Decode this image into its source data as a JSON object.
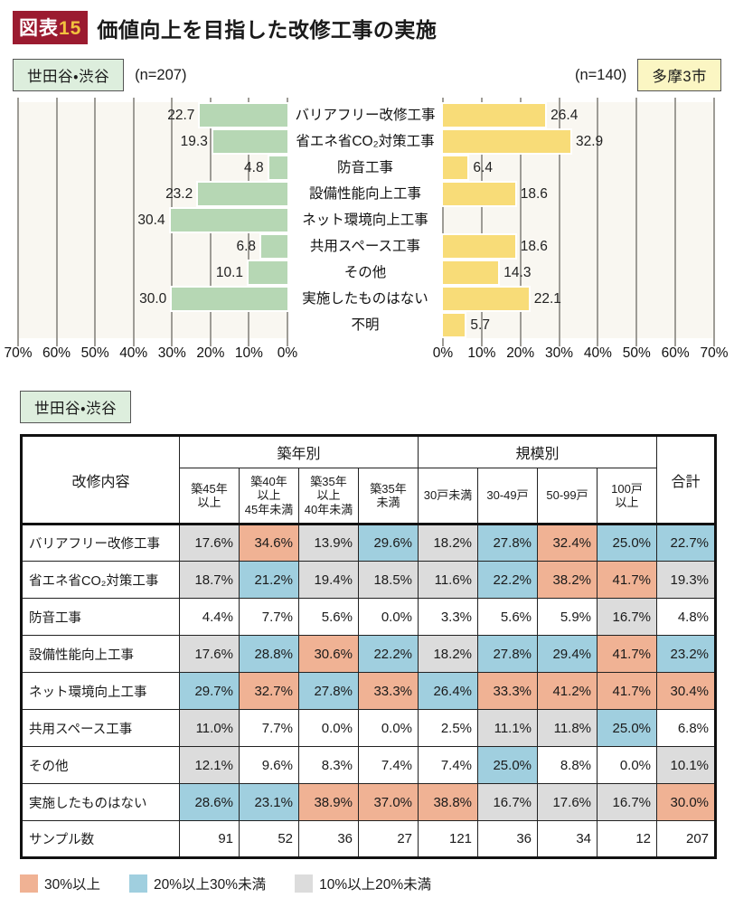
{
  "title": {
    "badge_prefix": "図表",
    "badge_number": "15",
    "text": "価値向上を目指した改修工事の実施"
  },
  "header": {
    "left_region": "世田谷・渋谷",
    "left_n": "(n=207)",
    "right_n": "(n=140)",
    "right_region": "多摩3市"
  },
  "chart_data": [
    {
      "type": "bar",
      "orientation": "horizontal",
      "title": "世田谷・渋谷",
      "subtitle": "(n=207)",
      "categories": [
        "バリアフリー改修工事",
        "省エネ省CO₂対策工事",
        "防音工事",
        "設備性能向上工事",
        "ネット環境向上工事",
        "共用スペース工事",
        "その他",
        "実施したものはない",
        "不明"
      ],
      "values": [
        22.7,
        19.3,
        4.8,
        23.2,
        30.4,
        6.8,
        10.1,
        30.0,
        null
      ],
      "unit": "%",
      "xlim": [
        0,
        70
      ],
      "x_direction": "right_to_left",
      "grid": true,
      "ticks": [
        "70%",
        "60%",
        "50%",
        "40%",
        "30%",
        "20%",
        "10%",
        "0%"
      ],
      "bar_color": "#b6d7b4"
    },
    {
      "type": "bar",
      "orientation": "horizontal",
      "title": "多摩3市",
      "subtitle": "(n=140)",
      "categories": [
        "バリアフリー改修工事",
        "省エネ省CO₂対策工事",
        "防音工事",
        "設備性能向上工事",
        "ネット環境向上工事",
        "共用スペース工事",
        "その他",
        "実施したものはない",
        "不明"
      ],
      "values": [
        26.4,
        32.9,
        6.4,
        18.6,
        null,
        18.6,
        14.3,
        22.1,
        5.7
      ],
      "unit": "%",
      "xlim": [
        0,
        70
      ],
      "x_direction": "left_to_right",
      "grid": true,
      "ticks": [
        "0%",
        "10%",
        "20%",
        "30%",
        "40%",
        "50%",
        "60%",
        "70%"
      ],
      "bar_color": "#f8dc78"
    }
  ],
  "table": {
    "region_label": "世田谷・渋谷",
    "label_col_header": "改修内容",
    "groups": [
      {
        "label": "築年別",
        "span": 4
      },
      {
        "label": "規模別",
        "span": 4
      }
    ],
    "total_header": "合計",
    "sub_headers": [
      "築45年\n以上",
      "築40年\n以上\n45年未満",
      "築35年\n以上\n40年未満",
      "築35年\n未満",
      "30戸未満",
      "30-49戸",
      "50-99戸",
      "100戸\n以上"
    ],
    "cell_colors": {
      "o": "#f0b294",
      "b": "#a0cfdf",
      "g": "#dcdcdc",
      "w": "#ffffff"
    },
    "rows": [
      {
        "label": "バリアフリー改修工事",
        "cells": [
          {
            "v": "17.6%",
            "c": "g"
          },
          {
            "v": "34.6%",
            "c": "o"
          },
          {
            "v": "13.9%",
            "c": "g"
          },
          {
            "v": "29.6%",
            "c": "b"
          },
          {
            "v": "18.2%",
            "c": "g"
          },
          {
            "v": "27.8%",
            "c": "b"
          },
          {
            "v": "32.4%",
            "c": "o"
          },
          {
            "v": "25.0%",
            "c": "b"
          }
        ],
        "total": {
          "v": "22.7%",
          "c": "b"
        }
      },
      {
        "label": "省エネ省CO₂対策工事",
        "cells": [
          {
            "v": "18.7%",
            "c": "g"
          },
          {
            "v": "21.2%",
            "c": "b"
          },
          {
            "v": "19.4%",
            "c": "g"
          },
          {
            "v": "18.5%",
            "c": "g"
          },
          {
            "v": "11.6%",
            "c": "g"
          },
          {
            "v": "22.2%",
            "c": "b"
          },
          {
            "v": "38.2%",
            "c": "o"
          },
          {
            "v": "41.7%",
            "c": "o"
          }
        ],
        "total": {
          "v": "19.3%",
          "c": "g"
        }
      },
      {
        "label": "防音工事",
        "cells": [
          {
            "v": "4.4%",
            "c": "w"
          },
          {
            "v": "7.7%",
            "c": "w"
          },
          {
            "v": "5.6%",
            "c": "w"
          },
          {
            "v": "0.0%",
            "c": "w"
          },
          {
            "v": "3.3%",
            "c": "w"
          },
          {
            "v": "5.6%",
            "c": "w"
          },
          {
            "v": "5.9%",
            "c": "w"
          },
          {
            "v": "16.7%",
            "c": "g"
          }
        ],
        "total": {
          "v": "4.8%",
          "c": "w"
        }
      },
      {
        "label": "設備性能向上工事",
        "cells": [
          {
            "v": "17.6%",
            "c": "g"
          },
          {
            "v": "28.8%",
            "c": "b"
          },
          {
            "v": "30.6%",
            "c": "o"
          },
          {
            "v": "22.2%",
            "c": "b"
          },
          {
            "v": "18.2%",
            "c": "g"
          },
          {
            "v": "27.8%",
            "c": "b"
          },
          {
            "v": "29.4%",
            "c": "b"
          },
          {
            "v": "41.7%",
            "c": "o"
          }
        ],
        "total": {
          "v": "23.2%",
          "c": "b"
        }
      },
      {
        "label": "ネット環境向上工事",
        "cells": [
          {
            "v": "29.7%",
            "c": "b"
          },
          {
            "v": "32.7%",
            "c": "o"
          },
          {
            "v": "27.8%",
            "c": "b"
          },
          {
            "v": "33.3%",
            "c": "o"
          },
          {
            "v": "26.4%",
            "c": "b"
          },
          {
            "v": "33.3%",
            "c": "o"
          },
          {
            "v": "41.2%",
            "c": "o"
          },
          {
            "v": "41.7%",
            "c": "o"
          }
        ],
        "total": {
          "v": "30.4%",
          "c": "o"
        }
      },
      {
        "label": "共用スペース工事",
        "cells": [
          {
            "v": "11.0%",
            "c": "g"
          },
          {
            "v": "7.7%",
            "c": "w"
          },
          {
            "v": "0.0%",
            "c": "w"
          },
          {
            "v": "0.0%",
            "c": "w"
          },
          {
            "v": "2.5%",
            "c": "w"
          },
          {
            "v": "11.1%",
            "c": "g"
          },
          {
            "v": "11.8%",
            "c": "g"
          },
          {
            "v": "25.0%",
            "c": "b"
          }
        ],
        "total": {
          "v": "6.8%",
          "c": "w"
        }
      },
      {
        "label": "その他",
        "cells": [
          {
            "v": "12.1%",
            "c": "g"
          },
          {
            "v": "9.6%",
            "c": "w"
          },
          {
            "v": "8.3%",
            "c": "w"
          },
          {
            "v": "7.4%",
            "c": "w"
          },
          {
            "v": "7.4%",
            "c": "w"
          },
          {
            "v": "25.0%",
            "c": "b"
          },
          {
            "v": "8.8%",
            "c": "w"
          },
          {
            "v": "0.0%",
            "c": "w"
          }
        ],
        "total": {
          "v": "10.1%",
          "c": "g"
        }
      },
      {
        "label": "実施したものはない",
        "cells": [
          {
            "v": "28.6%",
            "c": "b"
          },
          {
            "v": "23.1%",
            "c": "b"
          },
          {
            "v": "38.9%",
            "c": "o"
          },
          {
            "v": "37.0%",
            "c": "o"
          },
          {
            "v": "38.8%",
            "c": "o"
          },
          {
            "v": "16.7%",
            "c": "g"
          },
          {
            "v": "17.6%",
            "c": "g"
          },
          {
            "v": "16.7%",
            "c": "g"
          }
        ],
        "total": {
          "v": "30.0%",
          "c": "o"
        }
      },
      {
        "label": "サンプル数",
        "cells": [
          {
            "v": "91",
            "c": "w"
          },
          {
            "v": "52",
            "c": "w"
          },
          {
            "v": "36",
            "c": "w"
          },
          {
            "v": "27",
            "c": "w"
          },
          {
            "v": "121",
            "c": "w"
          },
          {
            "v": "36",
            "c": "w"
          },
          {
            "v": "34",
            "c": "w"
          },
          {
            "v": "12",
            "c": "w"
          }
        ],
        "total": {
          "v": "207",
          "c": "w"
        }
      }
    ]
  },
  "legend": {
    "items": [
      {
        "color": "#f0b294",
        "label": "30%以上"
      },
      {
        "color": "#a0cfdf",
        "label": "20%以上30%未満"
      },
      {
        "color": "#dcdcdc",
        "label": "10%以上20%未満"
      }
    ]
  },
  "colors": {
    "badge_bg": "#9b1b30",
    "badge_number": "#f2c23e",
    "left_box_bg": "#ddeedd",
    "right_box_bg": "#fbf6c3",
    "plot_bg": "#f9f7f1",
    "gridline": "#9e9c96"
  }
}
